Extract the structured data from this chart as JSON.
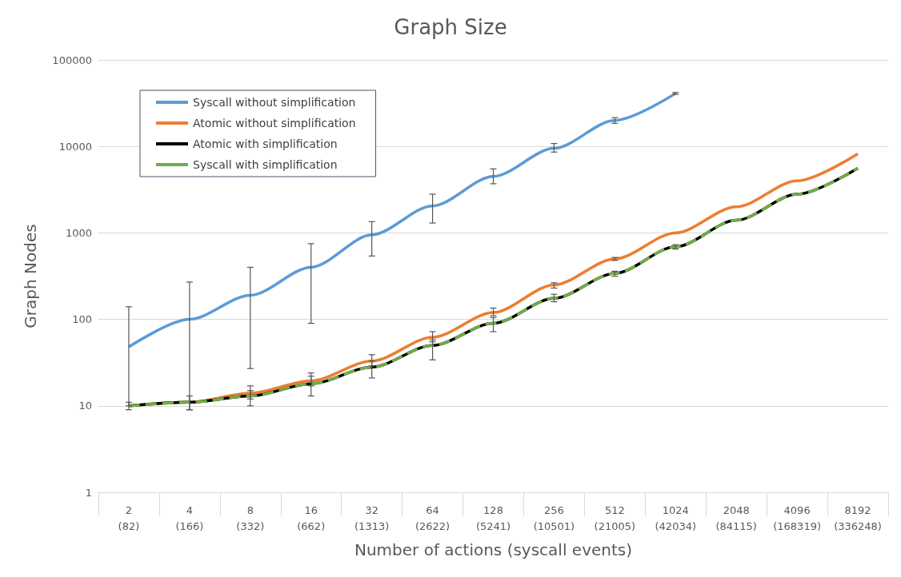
{
  "chart_data": {
    "type": "line",
    "title": "Graph Size",
    "xlabel": "Number of actions (syscall events)",
    "ylabel": "Graph Nodes",
    "categories": [
      "2\n(82)",
      "4\n(166)",
      "8\n(332)",
      "16\n(662)",
      "32\n(1313)",
      "64\n(2622)",
      "128\n(5241)",
      "256\n(10501)",
      "512\n(21005)",
      "1024\n(42034)",
      "2048\n(84115)",
      "4096\n(168319)",
      "8192\n(336248)"
    ],
    "series": [
      {
        "name": "Syscall without simplification",
        "color": "#5b9bd5",
        "line_style": "solid",
        "values": [
          48,
          100,
          190,
          400,
          950,
          2050,
          4500,
          9500,
          20000,
          41000,
          null,
          null,
          null
        ],
        "errors": [
          [
            10,
            140
          ],
          [
            9,
            270
          ],
          [
            27,
            400
          ],
          [
            90,
            750
          ],
          [
            540,
            1350
          ],
          [
            1300,
            2800
          ],
          [
            3700,
            5500
          ],
          [
            8600,
            10800
          ],
          [
            18500,
            21500
          ],
          [
            40000,
            42000
          ],
          null,
          null,
          null
        ]
      },
      {
        "name": "Atomic without simplification",
        "color": "#ed7d31",
        "line_style": "solid",
        "values": [
          10,
          11,
          14,
          19.5,
          33,
          62,
          120,
          250,
          500,
          1000,
          2000,
          4000,
          8200
        ],
        "errors": [
          null,
          null,
          [
            12,
            17
          ],
          [
            17,
            24
          ],
          [
            29,
            39
          ],
          [
            55,
            72
          ],
          [
            110,
            135
          ],
          [
            230,
            265
          ],
          [
            480,
            520
          ],
          null,
          null,
          null,
          null
        ]
      },
      {
        "name": "Atomic with simplification",
        "color": "#000000",
        "line_style": "solid",
        "values": [
          10,
          11,
          13,
          18,
          28,
          50,
          90,
          175,
          340,
          690,
          1400,
          2800,
          5600
        ],
        "errors": [
          [
            9,
            11
          ],
          [
            9,
            13
          ],
          [
            10,
            15
          ],
          [
            13,
            22
          ],
          [
            21,
            33
          ],
          [
            34,
            58
          ],
          [
            72,
            105
          ],
          [
            160,
            195
          ],
          [
            315,
            360
          ],
          [
            650,
            730
          ],
          null,
          null,
          null
        ]
      },
      {
        "name": "Syscall with simplification",
        "color": "#70ad47",
        "line_style": "dashed",
        "values": [
          10,
          11,
          13,
          18,
          28,
          50,
          90,
          175,
          340,
          690,
          1400,
          2800,
          5600
        ]
      }
    ],
    "log": true,
    "ylim": [
      1,
      100000
    ],
    "yticks": [
      1,
      10,
      100,
      1000,
      10000,
      100000
    ],
    "grid": "y",
    "legend": "top left",
    "marker": "none"
  }
}
